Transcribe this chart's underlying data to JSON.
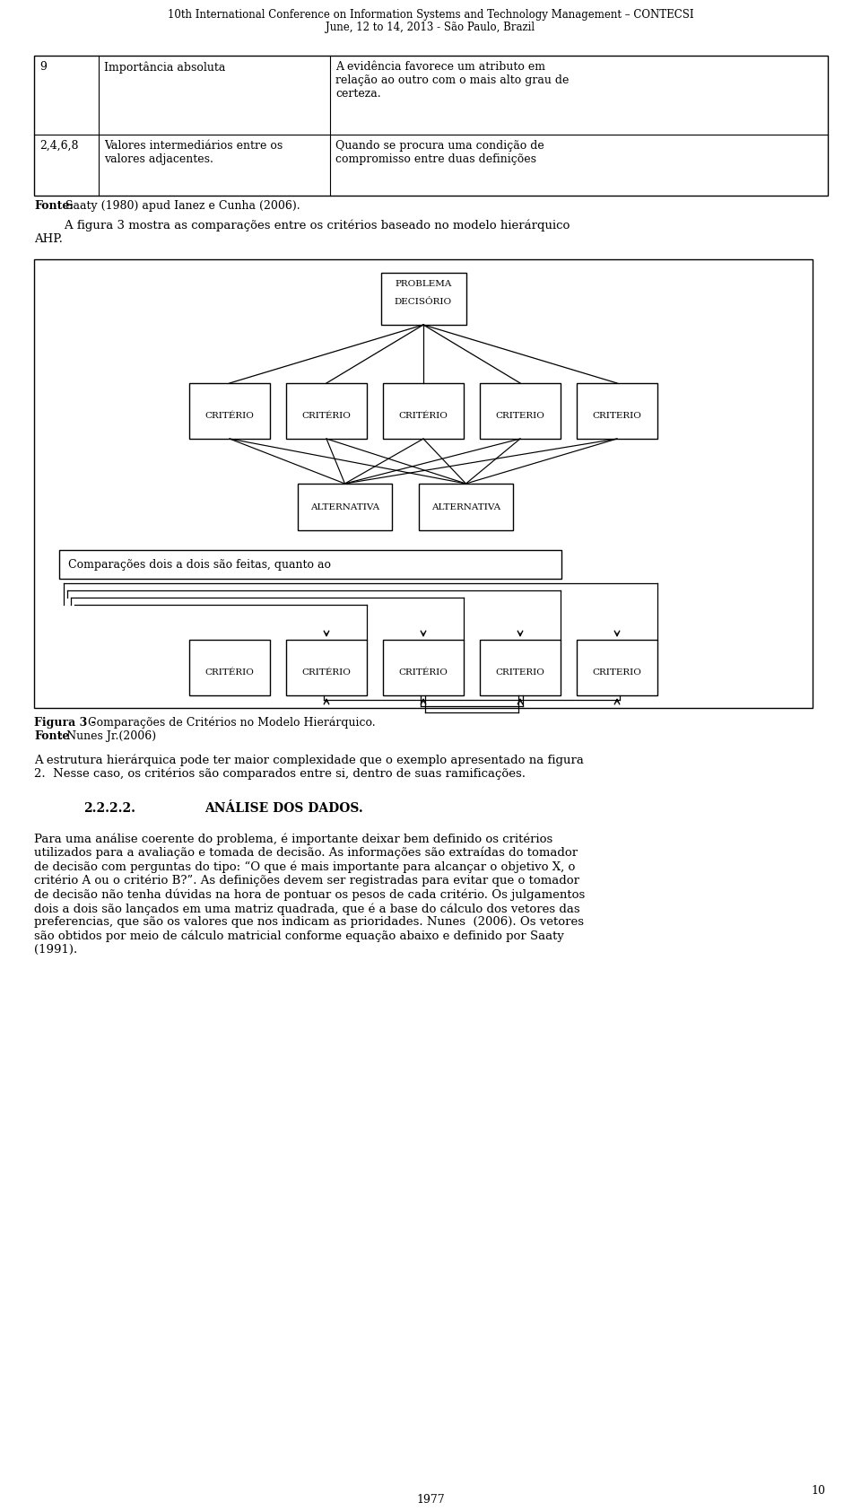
{
  "page_title_line1": "10th International Conference on Information Systems and Technology Management – CONTECSI",
  "page_title_line2": "June, 12 to 14, 2013 - São Paulo, Brazil",
  "table_rows": [
    {
      "col1": "9",
      "col2": "Importância absoluta",
      "col3": "A evidência favorece um atributo em relação ao outro com o mais alto grau de certeza."
    },
    {
      "col1": "2,4,6,8",
      "col2": "Valores intermediários entre os valores adjacentes.",
      "col3": "Quando se procura uma condição de compromisso entre duas definições"
    }
  ],
  "criteria_labels": [
    "CRITÉRIO",
    "CRITÉRIO",
    "CRITÉRIO",
    "CRITERIO",
    "CRITERIO"
  ],
  "alternative_labels": [
    "ALTERNATIVA",
    "ALTERNATIVA"
  ],
  "box_text": "Comparações dois a dois são feitas, quanto ao",
  "criteria_labels2": [
    "CRITÉRIO",
    "CRITÉRIO",
    "CRITÉRIO",
    "CRITERIO",
    "CRITERIO"
  ],
  "page_number": "10",
  "page_number2": "1977",
  "bg_color": "#ffffff",
  "text_color": "#000000"
}
